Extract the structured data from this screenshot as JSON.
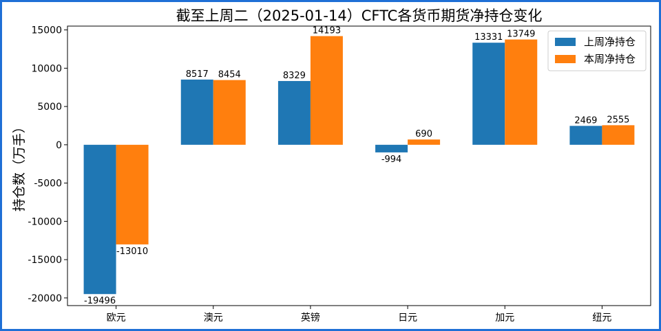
{
  "chart_data": {
    "type": "bar",
    "title": "截至上周二（2025-01-14）CFTC各货币期货净持仓变化",
    "xlabel": "",
    "ylabel": "持仓数（万手）",
    "categories": [
      "欧元",
      "澳元",
      "英镑",
      "日元",
      "加元",
      "纽元"
    ],
    "series": [
      {
        "name": "上周净持仓",
        "color": "#1f77b4",
        "values": [
          -19496,
          8517,
          8329,
          -994,
          13331,
          2469
        ]
      },
      {
        "name": "本周净持仓",
        "color": "#ff7f0e",
        "values": [
          -13010,
          8454,
          14193,
          690,
          13749,
          2555
        ]
      }
    ],
    "ylim": [
      -21000,
      15500
    ],
    "yticks": [
      15000,
      10000,
      5000,
      0,
      -5000,
      -10000,
      -15000,
      -20000
    ],
    "grid": false,
    "legend_position": "top-right"
  }
}
